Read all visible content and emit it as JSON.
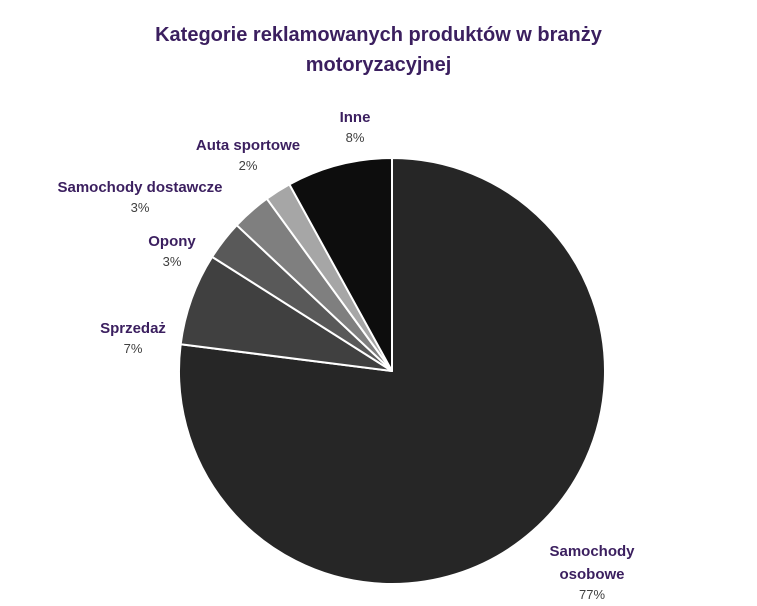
{
  "chart_data": {
    "type": "pie",
    "title_lines": [
      "Kategorie reklamowanych produktów w branży",
      "motoryzacyjnej"
    ],
    "title": "Kategorie reklamowanych produktów w branży motoryzacyjnej",
    "start_angle_deg": 0,
    "direction": "clockwise",
    "slices": [
      {
        "label_lines": [
          "Samochody",
          "osobowe"
        ],
        "label": "Samochody osobowe",
        "value": 77,
        "value_label": "77%",
        "color": "#262626"
      },
      {
        "label_lines": [
          "Sprzedaż"
        ],
        "label": "Sprzedaż",
        "value": 7,
        "value_label": "7%",
        "color": "#404040"
      },
      {
        "label_lines": [
          "Opony"
        ],
        "label": "Opony",
        "value": 3,
        "value_label": "3%",
        "color": "#595959"
      },
      {
        "label_lines": [
          "Samochody dostawcze"
        ],
        "label": "Samochody dostawcze",
        "value": 3,
        "value_label": "3%",
        "color": "#7f7f7f"
      },
      {
        "label_lines": [
          "Auta sportowe"
        ],
        "label": "Auta sportowe",
        "value": 2,
        "value_label": "2%",
        "color": "#a6a6a6"
      },
      {
        "label_lines": [
          "Inne"
        ],
        "label": "Inne",
        "value": 8,
        "value_label": "8%",
        "color": "#0d0d0d"
      }
    ],
    "slice_border_color": "#ffffff",
    "title_color": "#3b1f5f",
    "label_color": "#3b1f5f",
    "value_color": "#404040"
  }
}
